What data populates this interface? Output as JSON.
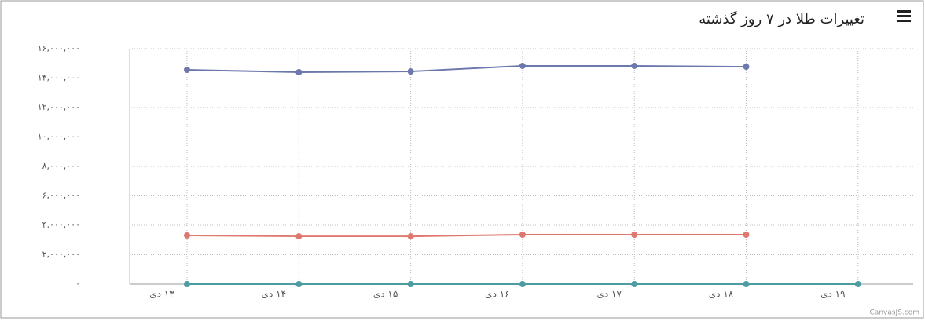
{
  "chart_data": {
    "type": "line",
    "title": "تغییرات طلا در ۷ روز گذشته",
    "credit": "CanvasJS.com",
    "categories": [
      "۱۳ دی",
      "۱۴ دی",
      "۱۵ دی",
      "۱۶ دی",
      "۱۷ دی",
      "۱۸ دی",
      "۱۹ دی"
    ],
    "series": [
      {
        "color": "#6d78ad",
        "values": [
          14560000,
          14400000,
          14450000,
          14830000,
          14830000,
          14770000,
          null
        ]
      },
      {
        "color": "#df7970",
        "values": [
          3310000,
          3250000,
          3250000,
          3360000,
          3360000,
          3360000,
          null
        ]
      },
      {
        "color": "#4c9ca0",
        "values": [
          0,
          0,
          0,
          0,
          0,
          0,
          0
        ]
      }
    ],
    "ylim": [
      0,
      16000000
    ],
    "yticks": [
      {
        "value": 0,
        "label": "۰"
      },
      {
        "value": 2000000,
        "label": "۲,۰۰۰,۰۰۰"
      },
      {
        "value": 4000000,
        "label": "۴,۰۰۰,۰۰۰"
      },
      {
        "value": 6000000,
        "label": "۶,۰۰۰,۰۰۰"
      },
      {
        "value": 8000000,
        "label": "۸,۰۰۰,۰۰۰"
      },
      {
        "value": 10000000,
        "label": "۱۰,۰۰۰,۰۰۰"
      },
      {
        "value": 12000000,
        "label": "۱۲,۰۰۰,۰۰۰"
      },
      {
        "value": 14000000,
        "label": "۱۴,۰۰۰,۰۰۰"
      },
      {
        "value": 16000000,
        "label": "۱۶,۰۰۰,۰۰۰"
      }
    ],
    "grid": true
  }
}
